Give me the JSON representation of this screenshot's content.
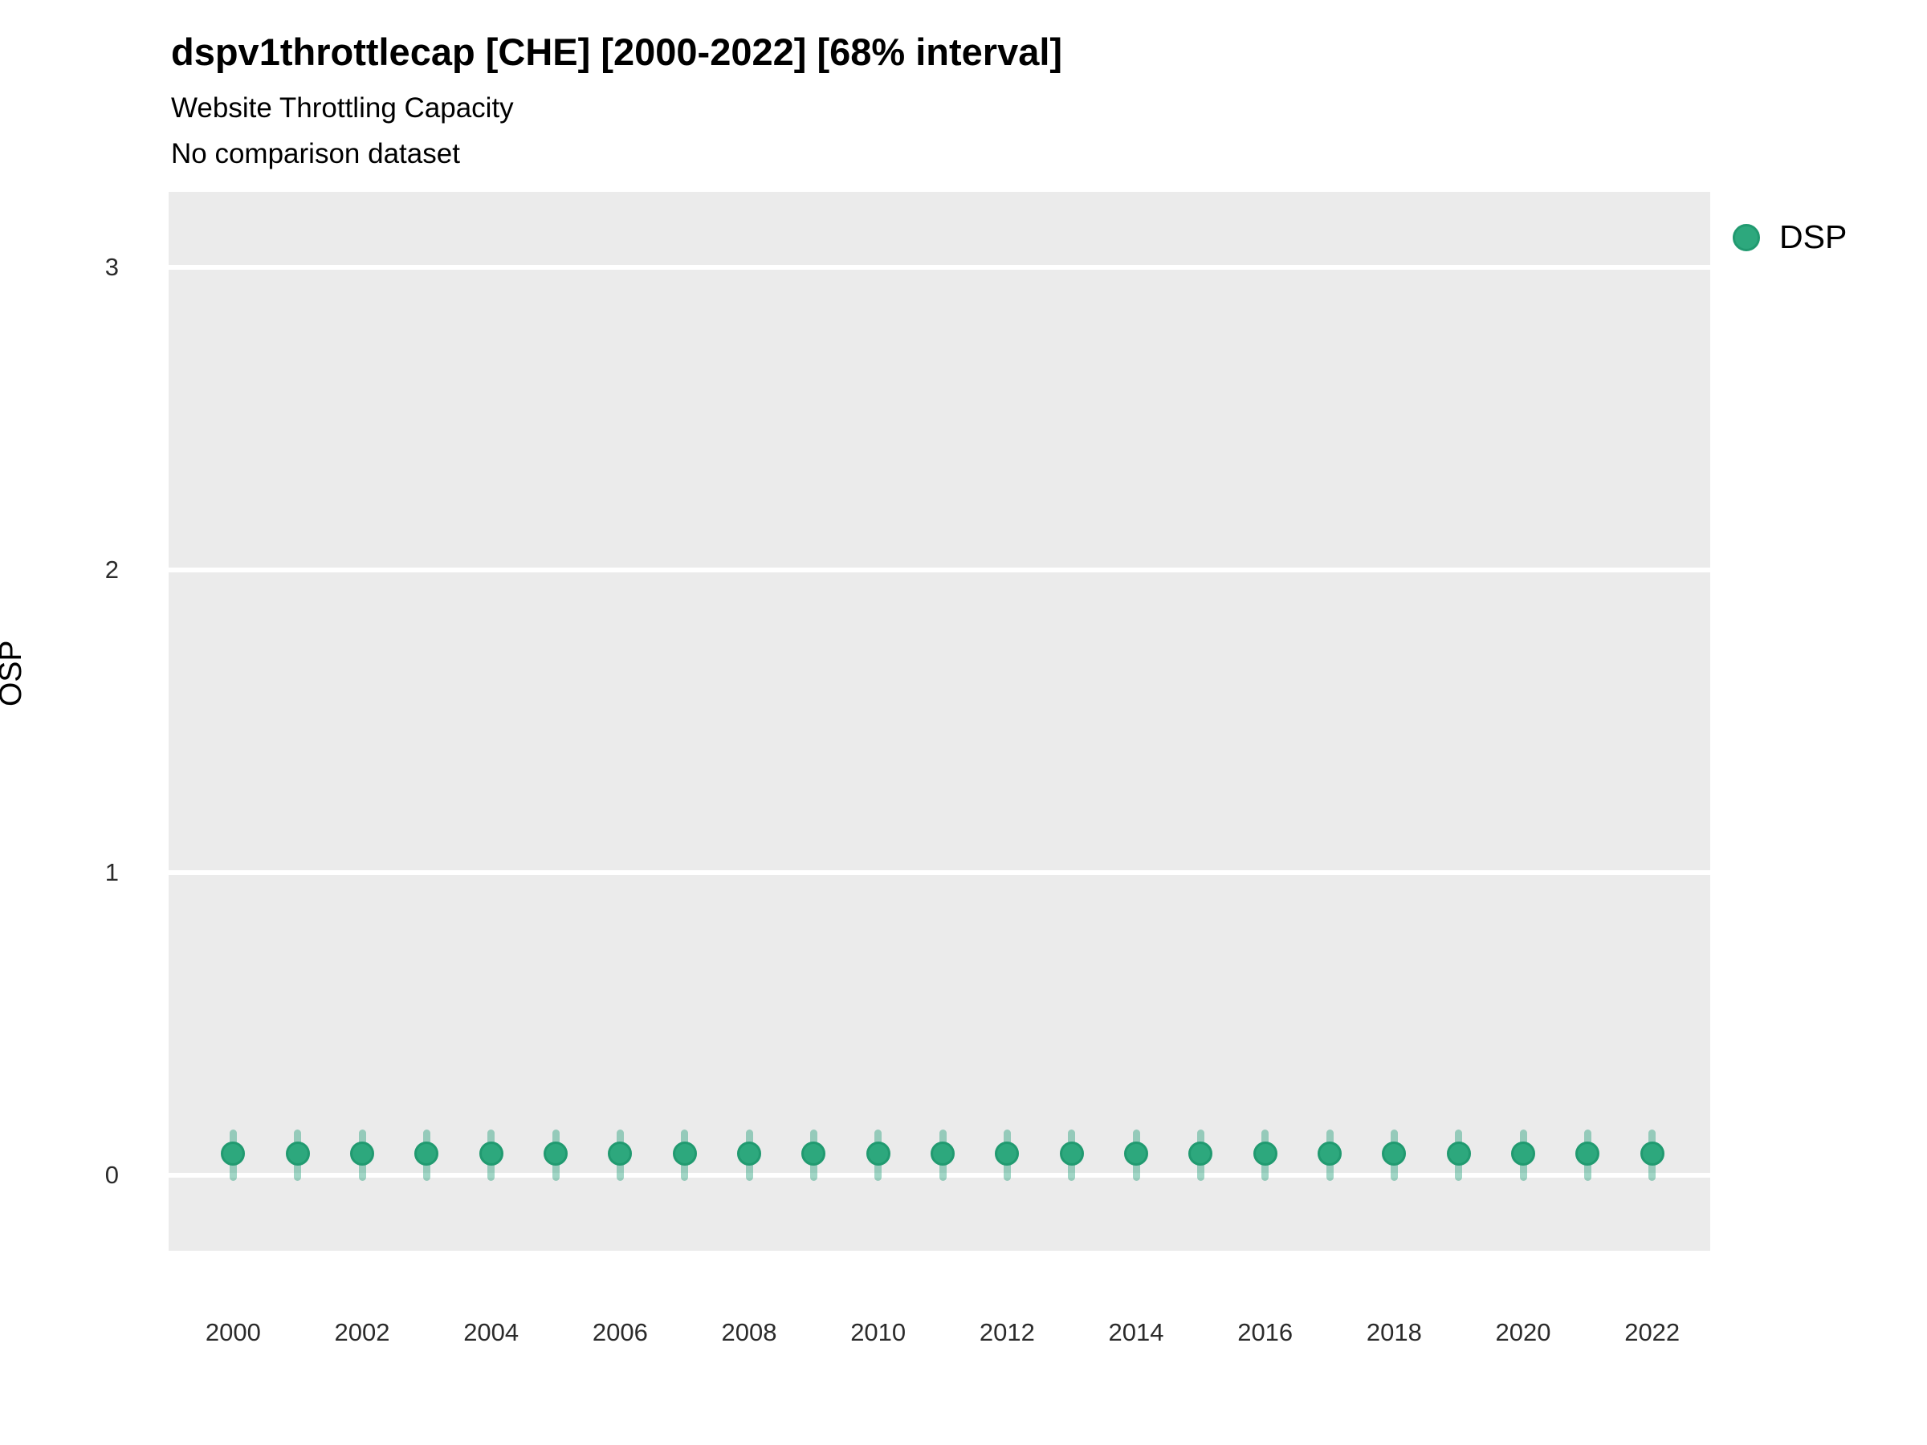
{
  "figure": {
    "title": "dspv1throttlecap [CHE] [2000-2022] [68% interval]",
    "subtitle": "Website Throttling Capacity",
    "comparison_note": "No comparison dataset",
    "y_axis_title": "OSP",
    "legend": {
      "items": [
        {
          "label": "DSP",
          "color": "#2DA87D",
          "edge_color": "#219A70"
        }
      ]
    }
  },
  "chart_data": {
    "type": "scatter",
    "title": "dspv1throttlecap [CHE] [2000-2022] [68% interval]",
    "subtitle": "Website Throttling Capacity",
    "note": "No comparison dataset",
    "interval": "68%",
    "xlabel": "",
    "ylabel": "OSP",
    "x": [
      2000,
      2001,
      2002,
      2003,
      2004,
      2005,
      2006,
      2007,
      2008,
      2009,
      2010,
      2011,
      2012,
      2013,
      2014,
      2015,
      2016,
      2017,
      2018,
      2019,
      2020,
      2021,
      2022
    ],
    "series": [
      {
        "name": "DSP",
        "color": "#2DA87D",
        "edge_color": "#219A70",
        "interval_color": "rgba(31,158,119,0.42)",
        "values": [
          0.07,
          0.07,
          0.07,
          0.07,
          0.07,
          0.07,
          0.07,
          0.07,
          0.07,
          0.07,
          0.07,
          0.07,
          0.07,
          0.07,
          0.07,
          0.07,
          0.07,
          0.07,
          0.07,
          0.07,
          0.07,
          0.07,
          0.07
        ],
        "interval_low": [
          -0.02,
          -0.02,
          -0.02,
          -0.02,
          -0.02,
          -0.02,
          -0.02,
          -0.02,
          -0.02,
          -0.02,
          -0.02,
          -0.02,
          -0.02,
          -0.02,
          -0.02,
          -0.02,
          -0.02,
          -0.02,
          -0.02,
          -0.02,
          -0.02,
          -0.02,
          -0.02
        ],
        "interval_high": [
          0.15,
          0.15,
          0.15,
          0.15,
          0.15,
          0.15,
          0.15,
          0.15,
          0.15,
          0.15,
          0.15,
          0.15,
          0.15,
          0.15,
          0.15,
          0.15,
          0.15,
          0.15,
          0.15,
          0.15,
          0.15,
          0.15,
          0.15
        ]
      }
    ],
    "xlim": [
      1999.0,
      2022.9
    ],
    "ylim": [
      -0.25,
      3.25
    ],
    "yticks": [
      "0",
      "1",
      "2",
      "3"
    ],
    "ytick_values": [
      0,
      1,
      2,
      3
    ],
    "xticks": [
      "2000",
      "2002",
      "2004",
      "2006",
      "2008",
      "2010",
      "2012",
      "2014",
      "2016",
      "2018",
      "2020",
      "2022"
    ],
    "xtick_values": [
      2000,
      2002,
      2004,
      2006,
      2008,
      2010,
      2012,
      2014,
      2016,
      2018,
      2020,
      2022
    ],
    "grid": "horizontal-major-only",
    "legend_position": "right-top",
    "panel_bg": "#EBEBEB",
    "gridline_color": "#FFFFFF"
  }
}
